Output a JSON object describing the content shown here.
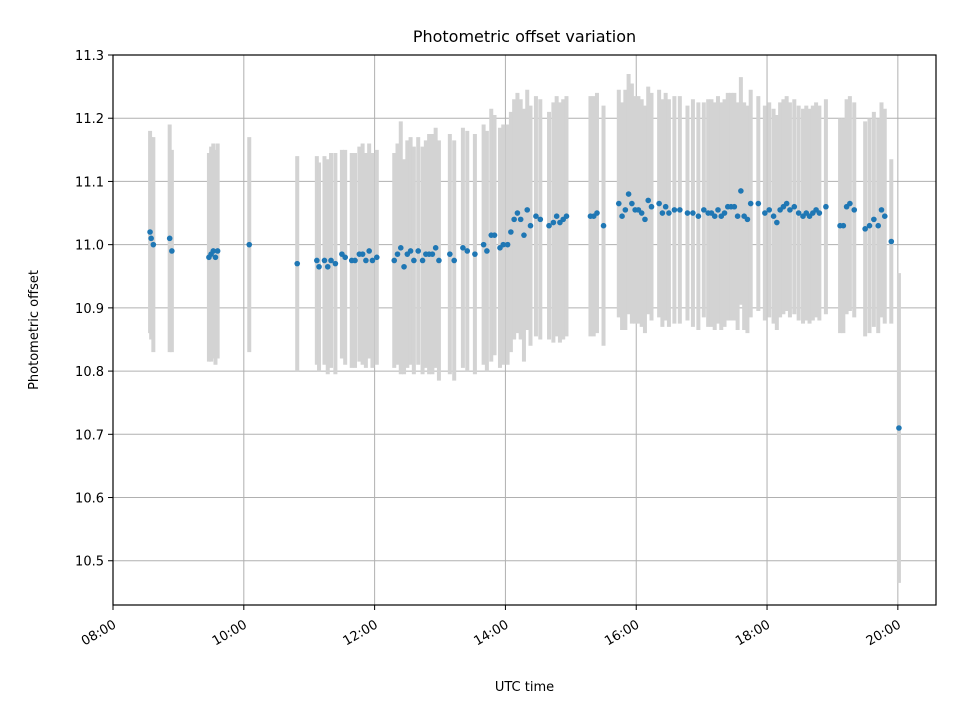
{
  "chart_data": {
    "type": "scatter",
    "title": "Photometric offset variation",
    "xlabel": "UTC time",
    "ylabel": "Photometric offset",
    "xlim": [
      "08:00",
      "20:35"
    ],
    "ylim": [
      10.43,
      11.3
    ],
    "x_ticks": [
      "08:00",
      "10:00",
      "12:00",
      "14:00",
      "16:00",
      "18:00",
      "20:00"
    ],
    "y_ticks": [
      "10.5",
      "10.6",
      "10.7",
      "10.8",
      "10.9",
      "11.0",
      "11.1",
      "11.2",
      "11.3"
    ],
    "grid": true,
    "colors": {
      "points": "#1f77b4",
      "errorbars": "#d3d3d3",
      "grid": "#b0b0b0"
    },
    "series": [
      {
        "values": [
          {
            "x": "08:34",
            "y": 11.02,
            "err": 0.16
          },
          {
            "x": "08:35",
            "y": 11.01,
            "err": 0.16
          },
          {
            "x": "08:37",
            "y": 11.0,
            "err": 0.17
          },
          {
            "x": "08:52",
            "y": 11.01,
            "err": 0.18
          },
          {
            "x": "08:54",
            "y": 10.99,
            "err": 0.16
          },
          {
            "x": "09:28",
            "y": 10.98,
            "err": 0.165
          },
          {
            "x": "09:30",
            "y": 10.985,
            "err": 0.17
          },
          {
            "x": "09:32",
            "y": 10.99,
            "err": 0.17
          },
          {
            "x": "09:34",
            "y": 10.98,
            "err": 0.17
          },
          {
            "x": "09:36",
            "y": 10.99,
            "err": 0.17
          },
          {
            "x": "10:05",
            "y": 11.0,
            "err": 0.17
          },
          {
            "x": "10:49",
            "y": 10.97,
            "err": 0.17
          },
          {
            "x": "11:07",
            "y": 10.975,
            "err": 0.165
          },
          {
            "x": "11:09",
            "y": 10.965,
            "err": 0.165
          },
          {
            "x": "11:14",
            "y": 10.975,
            "err": 0.165
          },
          {
            "x": "11:17",
            "y": 10.965,
            "err": 0.17
          },
          {
            "x": "11:20",
            "y": 10.975,
            "err": 0.17
          },
          {
            "x": "11:24",
            "y": 10.97,
            "err": 0.175
          },
          {
            "x": "11:30",
            "y": 10.985,
            "err": 0.165
          },
          {
            "x": "11:33",
            "y": 10.98,
            "err": 0.17
          },
          {
            "x": "11:39",
            "y": 10.975,
            "err": 0.17
          },
          {
            "x": "11:42",
            "y": 10.975,
            "err": 0.17
          },
          {
            "x": "11:46",
            "y": 10.985,
            "err": 0.17
          },
          {
            "x": "11:49",
            "y": 10.985,
            "err": 0.175
          },
          {
            "x": "11:52",
            "y": 10.975,
            "err": 0.17
          },
          {
            "x": "11:55",
            "y": 10.99,
            "err": 0.17
          },
          {
            "x": "11:58",
            "y": 10.975,
            "err": 0.17
          },
          {
            "x": "12:02",
            "y": 10.98,
            "err": 0.17
          },
          {
            "x": "12:18",
            "y": 10.975,
            "err": 0.17
          },
          {
            "x": "12:21",
            "y": 10.985,
            "err": 0.175
          },
          {
            "x": "12:24",
            "y": 10.995,
            "err": 0.2
          },
          {
            "x": "12:27",
            "y": 10.965,
            "err": 0.17
          },
          {
            "x": "12:30",
            "y": 10.985,
            "err": 0.18
          },
          {
            "x": "12:33",
            "y": 10.99,
            "err": 0.18
          },
          {
            "x": "12:36",
            "y": 10.975,
            "err": 0.18
          },
          {
            "x": "12:40",
            "y": 10.99,
            "err": 0.18
          },
          {
            "x": "12:44",
            "y": 10.975,
            "err": 0.18
          },
          {
            "x": "12:47",
            "y": 10.985,
            "err": 0.18
          },
          {
            "x": "12:50",
            "y": 10.985,
            "err": 0.19
          },
          {
            "x": "12:53",
            "y": 10.985,
            "err": 0.19
          },
          {
            "x": "12:56",
            "y": 10.995,
            "err": 0.19
          },
          {
            "x": "12:59",
            "y": 10.975,
            "err": 0.19
          },
          {
            "x": "13:09",
            "y": 10.985,
            "err": 0.19
          },
          {
            "x": "13:13",
            "y": 10.975,
            "err": 0.19
          },
          {
            "x": "13:21",
            "y": 10.995,
            "err": 0.19
          },
          {
            "x": "13:25",
            "y": 10.99,
            "err": 0.19
          },
          {
            "x": "13:32",
            "y": 10.985,
            "err": 0.19
          },
          {
            "x": "13:40",
            "y": 11.0,
            "err": 0.19
          },
          {
            "x": "13:43",
            "y": 10.99,
            "err": 0.19
          },
          {
            "x": "13:47",
            "y": 11.015,
            "err": 0.2
          },
          {
            "x": "13:50",
            "y": 11.015,
            "err": 0.19
          },
          {
            "x": "13:55",
            "y": 10.995,
            "err": 0.19
          },
          {
            "x": "13:58",
            "y": 11.0,
            "err": 0.19
          },
          {
            "x": "14:02",
            "y": 11.0,
            "err": 0.19
          },
          {
            "x": "14:05",
            "y": 11.02,
            "err": 0.19
          },
          {
            "x": "14:08",
            "y": 11.04,
            "err": 0.19
          },
          {
            "x": "14:11",
            "y": 11.05,
            "err": 0.19
          },
          {
            "x": "14:14",
            "y": 11.04,
            "err": 0.19
          },
          {
            "x": "14:17",
            "y": 11.015,
            "err": 0.2
          },
          {
            "x": "14:20",
            "y": 11.055,
            "err": 0.19
          },
          {
            "x": "14:23",
            "y": 11.03,
            "err": 0.19
          },
          {
            "x": "14:28",
            "y": 11.045,
            "err": 0.19
          },
          {
            "x": "14:32",
            "y": 11.04,
            "err": 0.19
          },
          {
            "x": "14:40",
            "y": 11.03,
            "err": 0.18
          },
          {
            "x": "14:44",
            "y": 11.035,
            "err": 0.19
          },
          {
            "x": "14:47",
            "y": 11.045,
            "err": 0.19
          },
          {
            "x": "14:50",
            "y": 11.035,
            "err": 0.19
          },
          {
            "x": "14:53",
            "y": 11.04,
            "err": 0.19
          },
          {
            "x": "14:56",
            "y": 11.045,
            "err": 0.19
          },
          {
            "x": "15:18",
            "y": 11.045,
            "err": 0.19
          },
          {
            "x": "15:21",
            "y": 11.045,
            "err": 0.19
          },
          {
            "x": "15:24",
            "y": 11.05,
            "err": 0.19
          },
          {
            "x": "15:30",
            "y": 11.03,
            "err": 0.19
          },
          {
            "x": "15:44",
            "y": 11.065,
            "err": 0.18
          },
          {
            "x": "15:47",
            "y": 11.045,
            "err": 0.18
          },
          {
            "x": "15:50",
            "y": 11.055,
            "err": 0.19
          },
          {
            "x": "15:53",
            "y": 11.08,
            "err": 0.19
          },
          {
            "x": "15:56",
            "y": 11.065,
            "err": 0.19
          },
          {
            "x": "15:59",
            "y": 11.055,
            "err": 0.18
          },
          {
            "x": "16:02",
            "y": 11.055,
            "err": 0.18
          },
          {
            "x": "16:05",
            "y": 11.05,
            "err": 0.18
          },
          {
            "x": "16:08",
            "y": 11.04,
            "err": 0.18
          },
          {
            "x": "16:11",
            "y": 11.07,
            "err": 0.18
          },
          {
            "x": "16:14",
            "y": 11.06,
            "err": 0.18
          },
          {
            "x": "16:21",
            "y": 11.065,
            "err": 0.18
          },
          {
            "x": "16:24",
            "y": 11.05,
            "err": 0.18
          },
          {
            "x": "16:27",
            "y": 11.06,
            "err": 0.18
          },
          {
            "x": "16:30",
            "y": 11.05,
            "err": 0.18
          },
          {
            "x": "16:35",
            "y": 11.055,
            "err": 0.18
          },
          {
            "x": "16:40",
            "y": 11.055,
            "err": 0.18
          },
          {
            "x": "16:47",
            "y": 11.05,
            "err": 0.17
          },
          {
            "x": "16:52",
            "y": 11.05,
            "err": 0.18
          },
          {
            "x": "16:57",
            "y": 11.045,
            "err": 0.18
          },
          {
            "x": "17:02",
            "y": 11.055,
            "err": 0.17
          },
          {
            "x": "17:06",
            "y": 11.05,
            "err": 0.18
          },
          {
            "x": "17:09",
            "y": 11.05,
            "err": 0.18
          },
          {
            "x": "17:12",
            "y": 11.045,
            "err": 0.18
          },
          {
            "x": "17:15",
            "y": 11.055,
            "err": 0.18
          },
          {
            "x": "17:18",
            "y": 11.045,
            "err": 0.18
          },
          {
            "x": "17:21",
            "y": 11.05,
            "err": 0.18
          },
          {
            "x": "17:24",
            "y": 11.06,
            "err": 0.18
          },
          {
            "x": "17:27",
            "y": 11.06,
            "err": 0.18
          },
          {
            "x": "17:30",
            "y": 11.06,
            "err": 0.18
          },
          {
            "x": "17:33",
            "y": 11.045,
            "err": 0.18
          },
          {
            "x": "17:36",
            "y": 11.085,
            "err": 0.18
          },
          {
            "x": "17:39",
            "y": 11.045,
            "err": 0.18
          },
          {
            "x": "17:42",
            "y": 11.04,
            "err": 0.18
          },
          {
            "x": "17:45",
            "y": 11.065,
            "err": 0.18
          },
          {
            "x": "17:52",
            "y": 11.065,
            "err": 0.17
          },
          {
            "x": "17:58",
            "y": 11.05,
            "err": 0.17
          },
          {
            "x": "18:02",
            "y": 11.055,
            "err": 0.17
          },
          {
            "x": "18:06",
            "y": 11.045,
            "err": 0.17
          },
          {
            "x": "18:09",
            "y": 11.035,
            "err": 0.17
          },
          {
            "x": "18:12",
            "y": 11.055,
            "err": 0.17
          },
          {
            "x": "18:15",
            "y": 11.06,
            "err": 0.17
          },
          {
            "x": "18:18",
            "y": 11.065,
            "err": 0.17
          },
          {
            "x": "18:21",
            "y": 11.055,
            "err": 0.17
          },
          {
            "x": "18:25",
            "y": 11.06,
            "err": 0.17
          },
          {
            "x": "18:29",
            "y": 11.05,
            "err": 0.17
          },
          {
            "x": "18:33",
            "y": 11.045,
            "err": 0.17
          },
          {
            "x": "18:36",
            "y": 11.05,
            "err": 0.17
          },
          {
            "x": "18:39",
            "y": 11.045,
            "err": 0.17
          },
          {
            "x": "18:42",
            "y": 11.05,
            "err": 0.17
          },
          {
            "x": "18:45",
            "y": 11.055,
            "err": 0.17
          },
          {
            "x": "18:48",
            "y": 11.05,
            "err": 0.17
          },
          {
            "x": "18:54",
            "y": 11.06,
            "err": 0.17
          },
          {
            "x": "19:07",
            "y": 11.03,
            "err": 0.17
          },
          {
            "x": "19:10",
            "y": 11.03,
            "err": 0.17
          },
          {
            "x": "19:13",
            "y": 11.06,
            "err": 0.17
          },
          {
            "x": "19:16",
            "y": 11.065,
            "err": 0.17
          },
          {
            "x": "19:20",
            "y": 11.055,
            "err": 0.17
          },
          {
            "x": "19:30",
            "y": 11.025,
            "err": 0.17
          },
          {
            "x": "19:34",
            "y": 11.03,
            "err": 0.17
          },
          {
            "x": "19:38",
            "y": 11.04,
            "err": 0.17
          },
          {
            "x": "19:42",
            "y": 11.03,
            "err": 0.17
          },
          {
            "x": "19:45",
            "y": 11.055,
            "err": 0.17
          },
          {
            "x": "19:48",
            "y": 11.045,
            "err": 0.17
          },
          {
            "x": "19:54",
            "y": 11.005,
            "err": 0.13
          },
          {
            "x": "20:01",
            "y": 10.71,
            "err": 0.245
          }
        ]
      }
    ]
  }
}
